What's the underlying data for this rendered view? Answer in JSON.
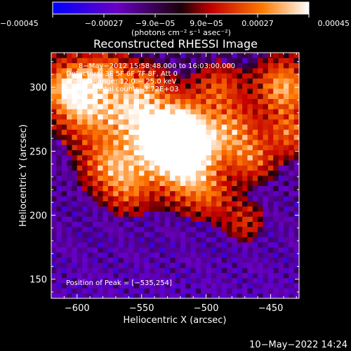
{
  "chart_data": {
    "type": "heatmap",
    "title": "Reconstructed RHESSI Image",
    "xlabel": "Heliocentric X (arcsec)",
    "ylabel": "Heliocentric Y (arcsec)",
    "xlim": [
      -620,
      -428
    ],
    "ylim": [
      135,
      327
    ],
    "x_ticks": [
      -600,
      -550,
      -500,
      -450
    ],
    "x_tick_labels": [
      "−600",
      "−550",
      "−500",
      "−450"
    ],
    "y_ticks": [
      150,
      200,
      250,
      300
    ],
    "y_tick_labels": [
      "150",
      "200",
      "250",
      "300"
    ],
    "colorbar": {
      "range": [
        -0.00045,
        0.00045
      ],
      "tick_values": [
        -0.00045,
        -0.00027,
        -9e-05,
        9e-05,
        0.00027,
        0.00045
      ],
      "tick_labels": [
        "−0.00045",
        "−0.00027",
        "−9.0e−05",
        "9.0e−05",
        "0.00027",
        "0.00045"
      ],
      "units_label": "(photons cm⁻² s⁻¹ asec⁻²)",
      "colors": [
        "#0000ff",
        "#6a00c4",
        "#1a0008",
        "#c40000",
        "#ff7a00",
        "#ffffff"
      ]
    },
    "annotations": [
      "8−May−2012 15:58:48.000 to 16:03:00.000",
      "Detectors: 3F 5F 6F 7F 8F, Att 0",
      "Energy Range: 12.0 − 25.0 keV",
      "Clean     Total counts: 3.72E+03"
    ],
    "peak_label": "Position of Peak = [−535,254]",
    "peak_position": [
      -535,
      254
    ],
    "grid_step_arcsec": 4,
    "grid": false
  },
  "footer": {
    "timestamp": "10−May−2022 14:24"
  }
}
